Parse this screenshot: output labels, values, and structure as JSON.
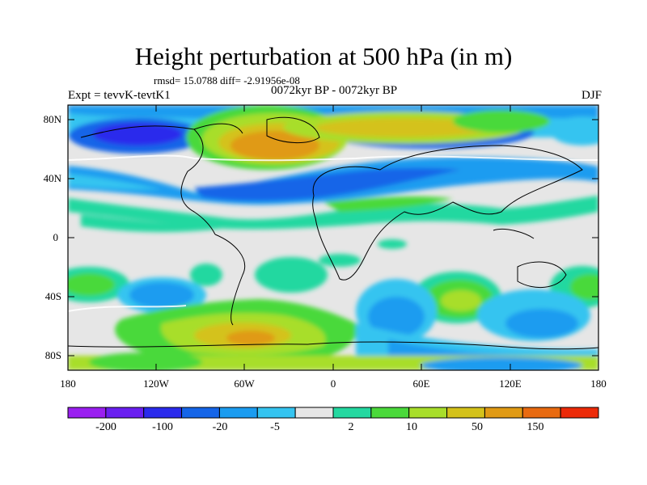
{
  "title": "Height perturbation at 500 hPa (in m)",
  "stats_line": "rmsd= 15.0788 diff= -2.91956e-08",
  "experiment": "Expt = tevvK-tevtK1",
  "period": "0072kyr BP - 0072kyr BP",
  "season": "DJF",
  "lat_labels": [
    "80N",
    "40N",
    "0",
    "40S",
    "80S"
  ],
  "lon_labels": [
    "180",
    "120W",
    "60W",
    "0",
    "60E",
    "120E",
    "180"
  ],
  "colorbar": {
    "colors": [
      "#9a1ff0",
      "#6a1ff0",
      "#2a2aec",
      "#1565e8",
      "#1b9cf0",
      "#35c4f0",
      "#e6e6e6",
      "#24d8a0",
      "#4ad93a",
      "#a8de2a",
      "#d4c21a",
      "#e09a14",
      "#e86a10",
      "#ec2a08"
    ],
    "labels": [
      "-200",
      "-100",
      "-20",
      "-5",
      "2",
      "10",
      "50",
      "150"
    ]
  }
}
